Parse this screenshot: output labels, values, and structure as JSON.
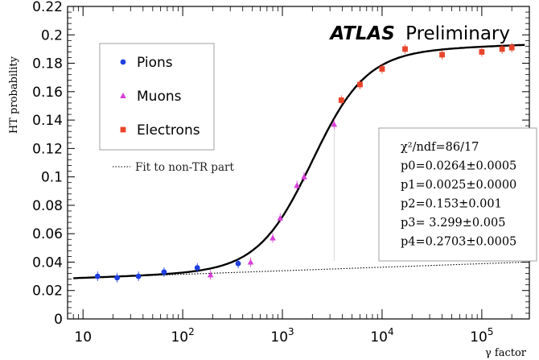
{
  "chart_data": {
    "type": "scatter",
    "x_scale": "log",
    "xlim": [
      7,
      300000
    ],
    "ylim": [
      0,
      0.22
    ],
    "xlabel": "γ factor",
    "ylabel": "HT probability",
    "y_ticks": [
      "0",
      "0.02",
      "0.04",
      "0.06",
      "0.08",
      "0.1",
      "0.12",
      "0.14",
      "0.16",
      "0.18",
      "0.2",
      "0.22"
    ],
    "x_ticks": [
      {
        "base": "10",
        "exp": ""
      },
      {
        "base": "10",
        "exp": "2"
      },
      {
        "base": "10",
        "exp": "3"
      },
      {
        "base": "10",
        "exp": "4"
      },
      {
        "base": "10",
        "exp": "5"
      }
    ],
    "atlas_label": {
      "bold": "ATLAS",
      "normal": "Preliminary"
    },
    "legend_placement": "top-left",
    "legend": [
      {
        "name": "Pions",
        "marker": "circle",
        "color": "#1f3fe0"
      },
      {
        "name": "Muons",
        "marker": "triangle",
        "color": "#d93fd9"
      },
      {
        "name": "Electrons",
        "marker": "square",
        "color": "#e8452b"
      }
    ],
    "dotted_label": "Fit to non-TR part",
    "series": [
      {
        "name": "Pions",
        "marker": "circle",
        "color": "#1f3fe0",
        "points": [
          {
            "x": 14,
            "y": 0.03
          },
          {
            "x": 22,
            "y": 0.029
          },
          {
            "x": 36,
            "y": 0.03
          },
          {
            "x": 65,
            "y": 0.033
          },
          {
            "x": 140,
            "y": 0.036
          },
          {
            "x": 360,
            "y": 0.039
          }
        ]
      },
      {
        "name": "Muons",
        "marker": "triangle",
        "color": "#d93fd9",
        "points": [
          {
            "x": 190,
            "y": 0.031
          },
          {
            "x": 480,
            "y": 0.04
          },
          {
            "x": 800,
            "y": 0.057
          },
          {
            "x": 950,
            "y": 0.071
          },
          {
            "x": 1400,
            "y": 0.094
          },
          {
            "x": 1650,
            "y": 0.1
          },
          {
            "x": 3300,
            "y": 0.137
          }
        ]
      },
      {
        "name": "Electrons",
        "marker": "square",
        "color": "#e8452b",
        "points": [
          {
            "x": 3900,
            "y": 0.154
          },
          {
            "x": 6000,
            "y": 0.165
          },
          {
            "x": 10000,
            "y": 0.176
          },
          {
            "x": 17000,
            "y": 0.19
          },
          {
            "x": 40000,
            "y": 0.186
          },
          {
            "x": 100000,
            "y": 0.188
          },
          {
            "x": 160000,
            "y": 0.19
          },
          {
            "x": 200000,
            "y": 0.191
          }
        ]
      }
    ],
    "fit": {
      "lines": [
        "χ²/ndf=86/17",
        "p0=0.0264±0.0005",
        "p1=0.0025±0.0000",
        "p2=0.153±0.001",
        "p3= 3.299±0.005",
        "p4=0.2703±0.0005"
      ],
      "p0": 0.0264,
      "p1": 0.0025,
      "p2": 0.153,
      "p3": 3.299,
      "p4": 0.2703
    }
  }
}
